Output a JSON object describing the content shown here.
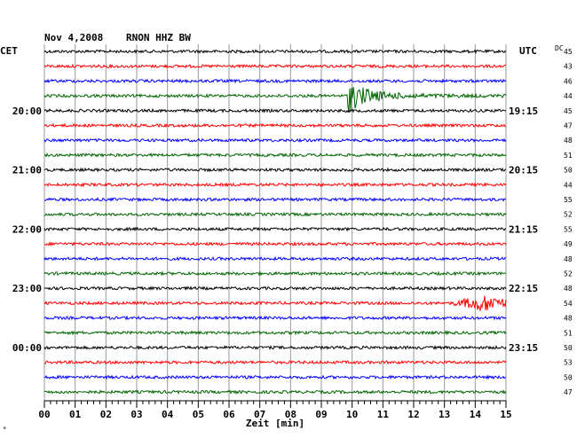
{
  "header": {
    "date": "Nov 4,2008",
    "station": "RNON HHZ BW",
    "left_zone": "CET",
    "right_zone": "UTC",
    "dc_label": "DC"
  },
  "chart_data": {
    "type": "helicorder",
    "xlabel": "Zeit [min]",
    "x_ticks": [
      "00",
      "01",
      "02",
      "03",
      "04",
      "05",
      "06",
      "07",
      "08",
      "09",
      "10",
      "11",
      "12",
      "13",
      "14",
      "15"
    ],
    "xlim": [
      0,
      15
    ],
    "trace_colors": [
      "#000000",
      "#ff0000",
      "#0000ff",
      "#006600"
    ],
    "traces": [
      {
        "color": "#000000",
        "dc": "45",
        "cet": "",
        "utc": ""
      },
      {
        "color": "#ff0000",
        "dc": "43",
        "cet": "",
        "utc": ""
      },
      {
        "color": "#0000ff",
        "dc": "46",
        "cet": "",
        "utc": ""
      },
      {
        "color": "#006600",
        "dc": "44",
        "cet": "",
        "utc": ""
      },
      {
        "color": "#000000",
        "dc": "45",
        "cet": "20:00",
        "utc": "19:15"
      },
      {
        "color": "#ff0000",
        "dc": "47",
        "cet": "",
        "utc": ""
      },
      {
        "color": "#0000ff",
        "dc": "48",
        "cet": "",
        "utc": ""
      },
      {
        "color": "#006600",
        "dc": "51",
        "cet": "",
        "utc": ""
      },
      {
        "color": "#000000",
        "dc": "50",
        "cet": "21:00",
        "utc": "20:15"
      },
      {
        "color": "#ff0000",
        "dc": "44",
        "cet": "",
        "utc": ""
      },
      {
        "color": "#0000ff",
        "dc": "55",
        "cet": "",
        "utc": ""
      },
      {
        "color": "#006600",
        "dc": "52",
        "cet": "",
        "utc": ""
      },
      {
        "color": "#000000",
        "dc": "55",
        "cet": "22:00",
        "utc": "21:15"
      },
      {
        "color": "#ff0000",
        "dc": "49",
        "cet": "",
        "utc": ""
      },
      {
        "color": "#0000ff",
        "dc": "48",
        "cet": "",
        "utc": ""
      },
      {
        "color": "#006600",
        "dc": "52",
        "cet": "",
        "utc": ""
      },
      {
        "color": "#000000",
        "dc": "48",
        "cet": "23:00",
        "utc": "22:15"
      },
      {
        "color": "#ff0000",
        "dc": "54",
        "cet": "",
        "utc": ""
      },
      {
        "color": "#0000ff",
        "dc": "48",
        "cet": "",
        "utc": ""
      },
      {
        "color": "#006600",
        "dc": "51",
        "cet": "",
        "utc": ""
      },
      {
        "color": "#000000",
        "dc": "50",
        "cet": "00:00",
        "utc": "23:15"
      },
      {
        "color": "#ff0000",
        "dc": "53",
        "cet": "",
        "utc": ""
      },
      {
        "color": "#0000ff",
        "dc": "50",
        "cet": "",
        "utc": ""
      },
      {
        "color": "#006600",
        "dc": "47",
        "cet": "",
        "utc": ""
      }
    ],
    "events": [
      {
        "trace_index": 3,
        "start_min": 9.85,
        "end_min": 15,
        "type": "decaying",
        "peak_amplitude": "large"
      },
      {
        "trace_index": 17,
        "start_min": 13.3,
        "end_min": 15,
        "type": "burst",
        "peak_amplitude": "medium"
      }
    ],
    "grid": true
  }
}
